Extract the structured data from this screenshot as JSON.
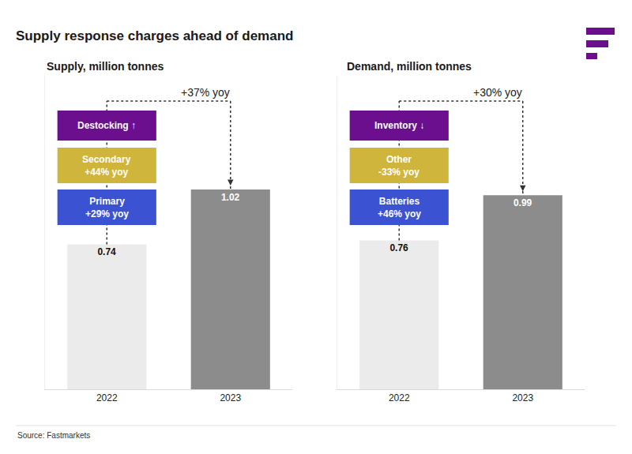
{
  "title": "Supply response charges ahead of demand",
  "source": "Source: Fastmarkets",
  "chart_data": [
    {
      "type": "bar",
      "title": "Supply, million tonnes",
      "categories": [
        "2022",
        "2023"
      ],
      "values": [
        0.74,
        1.02
      ],
      "colors": [
        "#ebebeb",
        "#8c8c8c"
      ],
      "data_labels": true,
      "tick_labels": "x",
      "ylim": [
        0,
        1.6
      ],
      "annotations": [
        "+37% yoy"
      ],
      "components": [
        {
          "name": "Destocking ↑",
          "color": "#6b0f8f"
        },
        {
          "name": "Secondary",
          "change": "+44% yoy",
          "color": "#cfb53b"
        },
        {
          "name": "Primary",
          "change": "+29% yoy",
          "color": "#3b53d3"
        }
      ]
    },
    {
      "type": "bar",
      "title": "Demand, million tonnes",
      "categories": [
        "2022",
        "2023"
      ],
      "values": [
        0.76,
        0.99
      ],
      "colors": [
        "#ebebeb",
        "#8c8c8c"
      ],
      "data_labels": true,
      "tick_labels": "x",
      "ylim": [
        0,
        1.6
      ],
      "annotations": [
        "+30% yoy"
      ],
      "components": [
        {
          "name": "Inventory ↓",
          "color": "#6b0f8f"
        },
        {
          "name": "Other",
          "change": "-33% yoy",
          "color": "#cfb53b"
        },
        {
          "name": "Batteries",
          "change": "+46% yoy",
          "color": "#3b53d3"
        }
      ]
    }
  ]
}
